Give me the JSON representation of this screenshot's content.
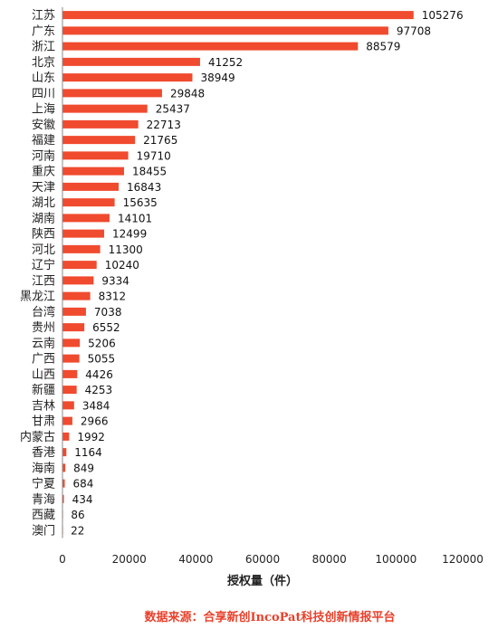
{
  "chart_data": {
    "type": "bar",
    "orientation": "horizontal",
    "categories": [
      "江苏",
      "广东",
      "浙江",
      "北京",
      "山东",
      "四川",
      "上海",
      "安徽",
      "福建",
      "河南",
      "重庆",
      "天津",
      "湖北",
      "湖南",
      "陕西",
      "河北",
      "辽宁",
      "江西",
      "黑龙江",
      "台湾",
      "贵州",
      "云南",
      "广西",
      "山西",
      "新疆",
      "吉林",
      "甘肃",
      "内蒙古",
      "香港",
      "海南",
      "宁夏",
      "青海",
      "西藏",
      "澳门"
    ],
    "values": [
      105276,
      97708,
      88579,
      41252,
      38949,
      29848,
      25437,
      22713,
      21765,
      19710,
      18455,
      16843,
      15635,
      14101,
      12499,
      11300,
      10240,
      9334,
      8312,
      7038,
      6552,
      5206,
      5055,
      4426,
      4253,
      3484,
      2966,
      1992,
      1164,
      849,
      684,
      434,
      86,
      22
    ],
    "xlabel": "授权量（件）",
    "xlim": [
      0,
      120000
    ],
    "xticks": [
      0,
      20000,
      40000,
      60000,
      80000,
      100000,
      120000
    ],
    "grid": false,
    "bar_color": "#f04a2f"
  },
  "source_note": "数据来源：合享新创IncoPat科技创新情报平台"
}
